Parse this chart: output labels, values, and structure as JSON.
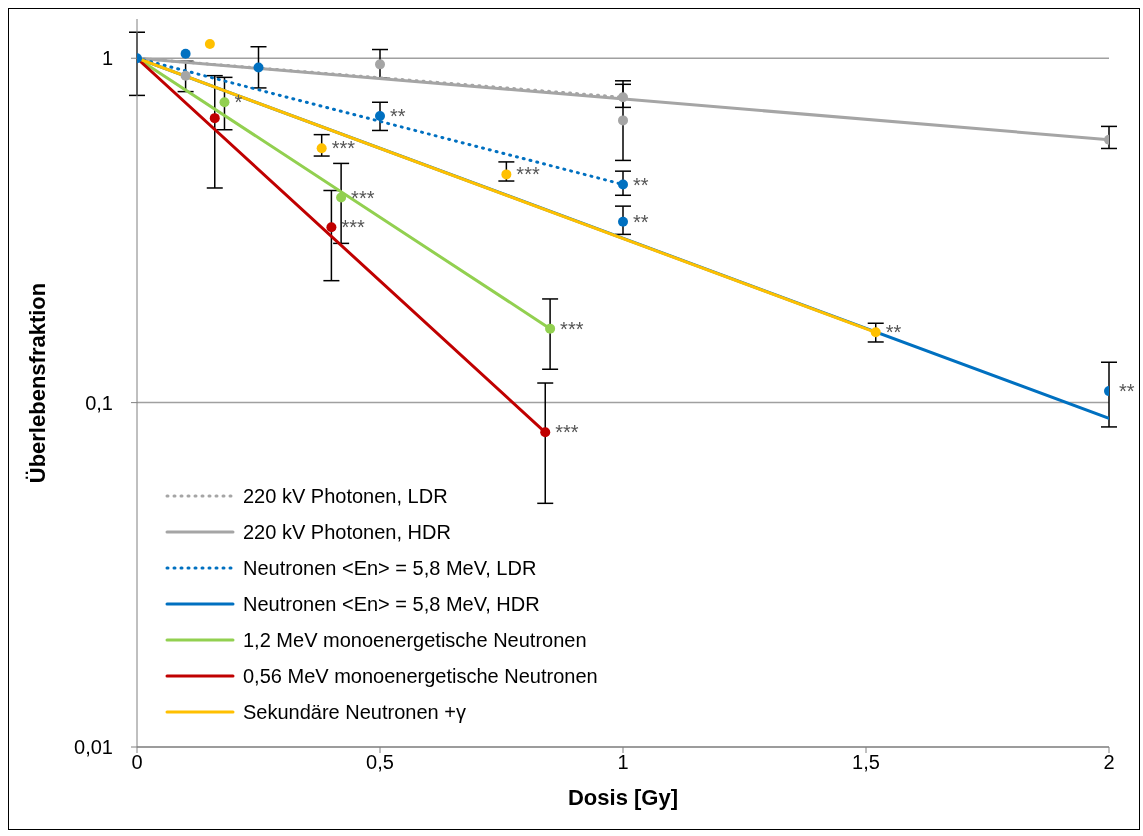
{
  "chart_data": {
    "type": "line",
    "xlabel": "Dosis [Gy]",
    "ylabel": "Überlebensfraktion",
    "log": "y",
    "grid": "y",
    "legend": "bottom left",
    "xlim": [
      0,
      2
    ],
    "xticks": [
      0,
      {
        "value": 0.5,
        "label": "0,5"
      },
      1,
      {
        "value": 1.5,
        "label": "1,5"
      },
      2
    ],
    "ylim": [
      0.01,
      1.3
    ],
    "yticks": [
      {
        "value": 0.01,
        "label": "0,01"
      },
      {
        "value": 0.1,
        "label": "0,1"
      },
      1
    ],
    "series": [
      {
        "name": "220 kV Photonen, LDR",
        "type": "line",
        "line_style": "dotted",
        "color": "#a5a5a5",
        "x": [
          0,
          1
        ],
        "values": [
          1,
          0.77
        ]
      },
      {
        "name": "220 kV Photonen, HDR",
        "type": "line",
        "line_style": "solid",
        "color": "#a5a5a5",
        "x": [
          0,
          2
        ],
        "values": [
          1,
          0.58
        ]
      },
      {
        "name": "Neutronen  <En> = 5,8 MeV, LDR",
        "type": "line",
        "line_style": "dotted",
        "color": "#0070c0",
        "x": [
          0,
          1
        ],
        "values": [
          1,
          0.43
        ]
      },
      {
        "name": "Neutronen  <En> = 5,8 MeV, HDR",
        "type": "line",
        "line_style": "solid",
        "color": "#0070c0",
        "x": [
          0,
          2
        ],
        "values": [
          1,
          0.09
        ]
      },
      {
        "name": "1,2 MeV monoenergetische Neutronen",
        "type": "line",
        "line_style": "solid",
        "color": "#92d050",
        "x": [
          0,
          0.85
        ],
        "values": [
          1,
          0.164
        ]
      },
      {
        "name": "0,56 MeV monoenergetische Neutronen",
        "type": "line",
        "line_style": "solid",
        "color": "#c00000",
        "x": [
          0,
          0.84
        ],
        "values": [
          1,
          0.082
        ]
      },
      {
        "name": "Sekundäre Neutronen  +γ",
        "type": "line",
        "line_style": "solid",
        "color": "#ffc000",
        "x": [
          0,
          1.52
        ],
        "values": [
          1,
          0.16
        ]
      },
      {
        "type": "scatter",
        "marker": "circle",
        "color": "#a5a5a5",
        "x": [
          0.1,
          0.5,
          1,
          1,
          2
        ],
        "values": [
          0.89,
          0.96,
          0.66,
          0.77,
          0.58
        ],
        "errors": [
          [
            0.8,
            0.98
          ],
          [
            0.875,
            1.06
          ],
          [
            0.505,
            0.86
          ],
          [
            0.72,
            0.84
          ],
          [
            0.547,
            0.634
          ]
        ]
      },
      {
        "type": "scatter",
        "color": "#0070c0",
        "x": [
          0,
          0.1,
          0.25,
          0.5,
          1,
          1,
          2
        ],
        "values": [
          1,
          1.03,
          0.94,
          0.68,
          0.43,
          0.335,
          0.108
        ],
        "errors": [
          [
            0.78,
            1.19
          ],
          null,
          [
            0.82,
            1.08
          ],
          [
            0.617,
            0.745
          ],
          [
            0.4,
            0.47
          ],
          [
            0.308,
            0.372
          ],
          [
            0.085,
            0.131
          ]
        ]
      },
      {
        "type": "scatter",
        "color": "#92d050",
        "x": [
          0.18,
          0.42,
          0.85
        ],
        "values": [
          0.745,
          0.394,
          0.164
        ],
        "errors": [
          [
            0.62,
            0.88
          ],
          [
            0.29,
            0.495
          ],
          [
            0.125,
            0.2
          ]
        ]
      },
      {
        "type": "scatter",
        "color": "#c00000",
        "x": [
          0.16,
          0.4,
          0.84
        ],
        "values": [
          0.67,
          0.323,
          0.082
        ],
        "errors": [
          [
            0.42,
            0.89
          ],
          [
            0.226,
            0.413
          ],
          [
            0.051,
            0.114
          ]
        ]
      },
      {
        "type": "scatter",
        "marker": "circle",
        "color": "#ffc000",
        "x": [
          0.15,
          0.38,
          0.76,
          1.52
        ],
        "values": [
          1.1,
          0.548,
          0.46,
          0.16
        ],
        "errors": [
          null,
          [
            0.52,
            0.6
          ],
          [
            0.44,
            0.5
          ],
          [
            0.15,
            0.17
          ]
        ]
      }
    ],
    "annotations": [
      {
        "text": "*",
        "x": 0.18,
        "y": 0.745
      },
      {
        "text": "**",
        "x": 0.5,
        "y": 0.68
      },
      {
        "text": "***",
        "x": 0.38,
        "y": 0.548
      },
      {
        "text": "***",
        "x": 0.42,
        "y": 0.394
      },
      {
        "text": "***",
        "x": 0.76,
        "y": 0.46
      },
      {
        "text": "**",
        "x": 1,
        "y": 0.43
      },
      {
        "text": "**",
        "x": 1,
        "y": 0.335
      },
      {
        "text": "***",
        "x": 0.4,
        "y": 0.323
      },
      {
        "text": "***",
        "x": 0.85,
        "y": 0.164
      },
      {
        "text": "**",
        "x": 1.52,
        "y": 0.16
      },
      {
        "text": "**",
        "x": 2,
        "y": 0.108
      },
      {
        "text": "***",
        "x": 0.84,
        "y": 0.082
      }
    ]
  }
}
